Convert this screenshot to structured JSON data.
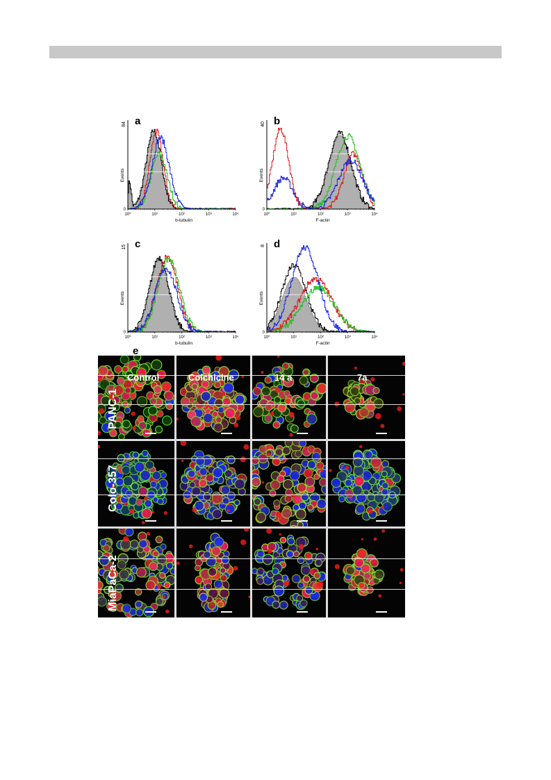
{
  "colors": {
    "red": "#e01010",
    "green": "#18c018",
    "blue": "#1020e0",
    "black": "#000000",
    "gray_fill": "#b0b0b0"
  },
  "chart_data": [
    {
      "panel": "a",
      "type": "histogram-overlay",
      "xlabel": "b-tubulin",
      "ylabel": "Events",
      "ymax_label": "84",
      "ylim": [
        0,
        84
      ],
      "x_scale": "log",
      "xlim": [
        1,
        10000
      ],
      "xticks": [
        "10⁰",
        "10¹",
        "10²",
        "10³",
        "10⁴"
      ],
      "series": [
        {
          "color": "gray_fill",
          "filled": true,
          "peak_log": 0.95,
          "width": 0.28,
          "height": 0.86,
          "shoulder": [
            0.05,
            0.06,
            0.3
          ]
        },
        {
          "color": "black",
          "filled": false,
          "peak_log": 0.95,
          "width": 0.28,
          "height": 0.88,
          "shoulder": [
            0.05,
            0.06,
            0.3
          ]
        },
        {
          "color": "red",
          "filled": false,
          "peak_log": 1.05,
          "width": 0.25,
          "height": 0.87
        },
        {
          "color": "green",
          "filled": false,
          "peak_log": 1.15,
          "width": 0.3,
          "height": 0.62
        },
        {
          "color": "blue",
          "filled": false,
          "peak_log": 1.2,
          "width": 0.32,
          "height": 0.8
        }
      ]
    },
    {
      "panel": "b",
      "type": "histogram-overlay",
      "xlabel": "F-actin",
      "ylabel": "Events",
      "ymax_label": "40",
      "ylim": [
        0,
        40
      ],
      "x_scale": "log",
      "xlim": [
        1,
        10000
      ],
      "xticks": [
        "10⁰",
        "10¹",
        "10²",
        "10³",
        "10⁴"
      ],
      "series": [
        {
          "color": "gray_fill",
          "filled": true,
          "peak_log": 2.7,
          "width": 0.42,
          "height": 0.83
        },
        {
          "color": "black",
          "filled": false,
          "peak_log": 2.7,
          "width": 0.42,
          "height": 0.85
        },
        {
          "color": "red",
          "filled": false,
          "peak_log": 0.5,
          "width": 0.3,
          "height": 0.9,
          "second": [
            3.2,
            0.35,
            0.62
          ]
        },
        {
          "color": "green",
          "filled": false,
          "peak_log": 3.0,
          "width": 0.45,
          "height": 0.82
        },
        {
          "color": "blue",
          "filled": false,
          "peak_log": 0.6,
          "width": 0.35,
          "height": 0.35,
          "second": [
            3.1,
            0.45,
            0.55
          ]
        }
      ]
    },
    {
      "panel": "c",
      "type": "histogram-overlay",
      "xlabel": "b-tubulin",
      "ylabel": "Events",
      "ymax_label": "15",
      "ylim": [
        0,
        15
      ],
      "x_scale": "log",
      "xlim": [
        1,
        10000
      ],
      "xticks": [
        "10⁰",
        "10¹",
        "10²",
        "10³",
        "10⁴"
      ],
      "series": [
        {
          "color": "gray_fill",
          "filled": true,
          "peak_log": 1.15,
          "width": 0.35,
          "height": 0.82
        },
        {
          "color": "black",
          "filled": false,
          "peak_log": 1.15,
          "width": 0.35,
          "height": 0.84
        },
        {
          "color": "red",
          "filled": false,
          "peak_log": 1.45,
          "width": 0.38,
          "height": 0.85
        },
        {
          "color": "green",
          "filled": false,
          "peak_log": 1.5,
          "width": 0.4,
          "height": 0.82
        },
        {
          "color": "blue",
          "filled": false,
          "peak_log": 1.4,
          "width": 0.4,
          "height": 0.72
        }
      ]
    },
    {
      "panel": "d",
      "type": "histogram-overlay",
      "xlabel": "F-actin",
      "ylabel": "Events",
      "ymax_label": "8",
      "ylim": [
        0,
        8
      ],
      "x_scale": "log",
      "xlim": [
        1,
        10000
      ],
      "xticks": [
        "10⁰",
        "10¹",
        "10²",
        "10³",
        "10⁴"
      ],
      "series": [
        {
          "color": "gray_fill",
          "filled": true,
          "peak_log": 1.0,
          "width": 0.45,
          "height": 0.62
        },
        {
          "color": "black",
          "filled": false,
          "peak_log": 1.0,
          "width": 0.45,
          "height": 0.75
        },
        {
          "color": "red",
          "filled": false,
          "peak_log": 1.8,
          "width": 0.6,
          "height": 0.6
        },
        {
          "color": "green",
          "filled": false,
          "peak_log": 1.9,
          "width": 0.6,
          "height": 0.5
        },
        {
          "color": "blue",
          "filled": false,
          "peak_log": 1.4,
          "width": 0.5,
          "height": 0.95
        }
      ]
    }
  ],
  "micrographs": {
    "panel_letter": "e",
    "columns": [
      "Control",
      "Colchicine",
      "14 a",
      "7a"
    ],
    "rows": [
      "PANC-1",
      "Colo-357",
      "MiaPaCa-2"
    ],
    "cells": [
      [
        {
          "density": 0.85,
          "mix": [
            0.2,
            0.8,
            0.1
          ],
          "cluster": "wide"
        },
        {
          "density": 0.9,
          "mix": [
            0.85,
            0.45,
            0.35
          ],
          "cluster": "blob"
        },
        {
          "density": 0.55,
          "mix": [
            0.3,
            0.85,
            0.1
          ],
          "cluster": "scatter"
        },
        {
          "density": 0.35,
          "mix": [
            0.5,
            0.8,
            0.1
          ],
          "cluster": "small"
        }
      ],
      [
        {
          "density": 0.9,
          "mix": [
            0.15,
            0.75,
            0.7
          ],
          "cluster": "big"
        },
        {
          "density": 0.75,
          "mix": [
            0.5,
            0.3,
            0.85
          ],
          "cluster": "blob"
        },
        {
          "density": 0.95,
          "mix": [
            0.75,
            0.6,
            0.4
          ],
          "cluster": "full"
        },
        {
          "density": 0.8,
          "mix": [
            0.3,
            0.75,
            0.8
          ],
          "cluster": "big"
        }
      ],
      [
        {
          "density": 0.85,
          "mix": [
            0.55,
            0.7,
            0.5
          ],
          "cluster": "wide"
        },
        {
          "density": 0.55,
          "mix": [
            0.85,
            0.25,
            0.5
          ],
          "cluster": "column"
        },
        {
          "density": 0.6,
          "mix": [
            0.55,
            0.35,
            0.75
          ],
          "cluster": "scatter"
        },
        {
          "density": 0.5,
          "mix": [
            0.6,
            0.8,
            0.2
          ],
          "cluster": "small"
        }
      ]
    ]
  }
}
